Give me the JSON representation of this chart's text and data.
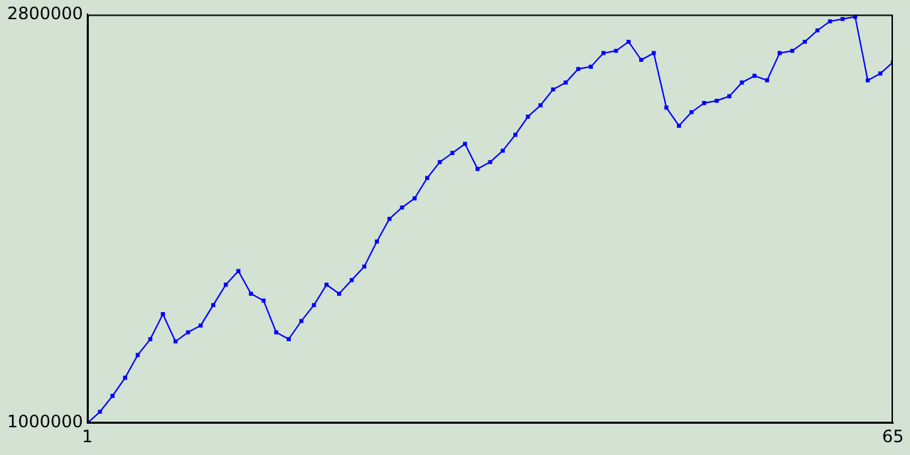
{
  "chart_data": {
    "type": "line",
    "x": [
      1,
      2,
      3,
      4,
      5,
      6,
      7,
      8,
      9,
      10,
      11,
      12,
      13,
      14,
      15,
      16,
      17,
      18,
      19,
      20,
      21,
      22,
      23,
      24,
      25,
      26,
      27,
      28,
      29,
      30,
      31,
      32,
      33,
      34,
      35,
      36,
      37,
      38,
      39,
      40,
      41,
      42,
      43,
      44,
      45,
      46,
      47,
      48,
      49,
      50,
      51,
      52,
      53,
      54,
      55,
      56,
      57,
      58,
      59,
      60,
      61,
      62,
      63,
      64,
      65
    ],
    "series": [
      {
        "color": "#0000ff",
        "values": [
          1000000,
          1050000,
          1120000,
          1200000,
          1300000,
          1370000,
          1480000,
          1360000,
          1400000,
          1430000,
          1520000,
          1610000,
          1670000,
          1570000,
          1540000,
          1400000,
          1370000,
          1450000,
          1520000,
          1610000,
          1570000,
          1630000,
          1690000,
          1800000,
          1900000,
          1950000,
          1990000,
          2080000,
          2150000,
          2190000,
          2230000,
          2120000,
          2150000,
          2200000,
          2270000,
          2350000,
          2400000,
          2470000,
          2500000,
          2560000,
          2570000,
          2630000,
          2640000,
          2680000,
          2600000,
          2630000,
          2390000,
          2310000,
          2370000,
          2410000,
          2420000,
          2440000,
          2500000,
          2530000,
          2510000,
          2630000,
          2640000,
          2680000,
          2730000,
          2770000,
          2780000,
          2790000,
          2510000,
          2540000,
          2590000
        ]
      }
    ],
    "xlim": [
      1,
      65
    ],
    "xticks": [
      1,
      65
    ],
    "ylim": [
      1000000,
      2800000
    ],
    "yticks": [
      1000000,
      2800000
    ],
    "grid": false,
    "legend": false,
    "marker": "square",
    "line_style": "solid"
  }
}
